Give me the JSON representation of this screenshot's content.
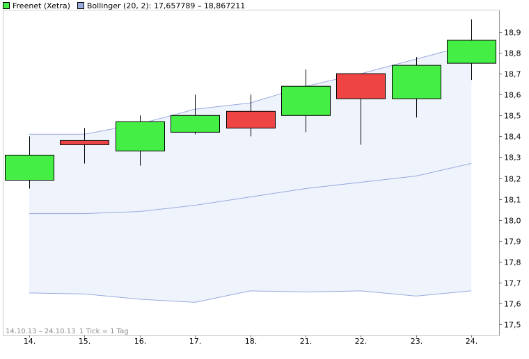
{
  "legend": {
    "series_label": "Freenet (Xetra)",
    "series_color": "#44ee44",
    "bollinger_label": "Bollinger (20, 2): 17,657789 – 18,867211",
    "bollinger_color": "#99aadd"
  },
  "footer": {
    "range": "14.10.13 – 24.10.13",
    "tick_info": "1 Tick = 1 Tag"
  },
  "colors": {
    "up": "#44ee44",
    "down": "#ee4444",
    "band_fill": "#eef3fc",
    "band_line": "#99aadd"
  },
  "chart_data": {
    "type": "candlestick",
    "title": "Freenet (Xetra)",
    "ylim": [
      17.45,
      18.97
    ],
    "y_ticks": [
      "18,9",
      "18,8",
      "18,7",
      "18,6",
      "18,5",
      "18,4",
      "18,3",
      "18,2",
      "18,1",
      "18,0",
      "17,9",
      "17,8",
      "17,7",
      "17,6",
      "17,5"
    ],
    "y_tick_values": [
      18.9,
      18.8,
      18.7,
      18.6,
      18.5,
      18.4,
      18.3,
      18.2,
      18.1,
      18.0,
      17.9,
      17.8,
      17.7,
      17.6,
      17.5
    ],
    "categories": [
      "14.",
      "15.",
      "16.",
      "17.",
      "18.",
      "21.",
      "22.",
      "23.",
      "24."
    ],
    "ohlc": [
      {
        "open": 18.19,
        "high": 18.4,
        "low": 18.15,
        "close": 18.31
      },
      {
        "open": 18.38,
        "high": 18.44,
        "low": 18.27,
        "close": 18.36
      },
      {
        "open": 18.33,
        "high": 18.5,
        "low": 18.26,
        "close": 18.47
      },
      {
        "open": 18.42,
        "high": 18.6,
        "low": 18.41,
        "close": 18.5
      },
      {
        "open": 18.52,
        "high": 18.6,
        "low": 18.4,
        "close": 18.44
      },
      {
        "open": 18.5,
        "high": 18.72,
        "low": 18.42,
        "close": 18.64
      },
      {
        "open": 18.7,
        "high": 18.7,
        "low": 18.36,
        "close": 18.58
      },
      {
        "open": 18.58,
        "high": 18.78,
        "low": 18.49,
        "close": 18.74
      },
      {
        "open": 18.75,
        "high": 18.96,
        "low": 18.67,
        "close": 18.86
      }
    ],
    "bollinger": {
      "upper": [
        18.41,
        18.41,
        18.46,
        18.53,
        18.56,
        18.64,
        18.7,
        18.77,
        18.84
      ],
      "middle": [
        18.03,
        18.03,
        18.04,
        18.07,
        18.11,
        18.15,
        18.18,
        18.21,
        18.27
      ],
      "lower": [
        17.65,
        17.645,
        17.62,
        17.605,
        17.66,
        17.655,
        17.66,
        17.635,
        17.66
      ]
    }
  }
}
